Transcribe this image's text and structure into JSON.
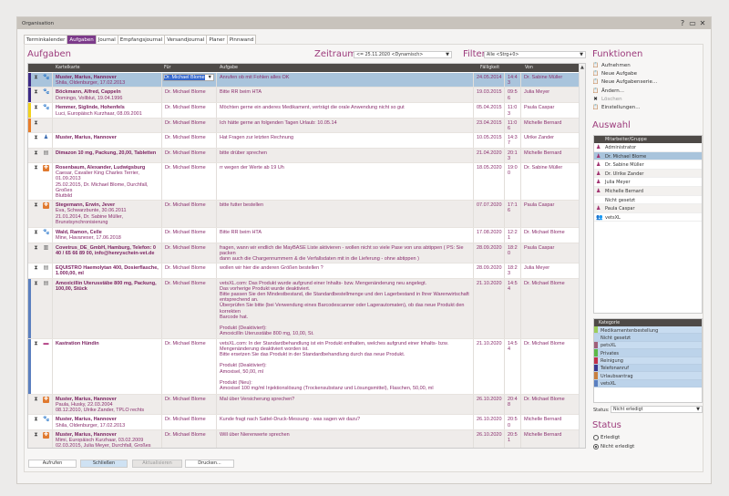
{
  "window": {
    "title": "Organisation",
    "help": "?",
    "minimize": "▭",
    "close": "✕"
  },
  "tabs": [
    {
      "label": "Terminkalender"
    },
    {
      "label": "Aufgaben",
      "active": true
    },
    {
      "label": "Journal"
    },
    {
      "label": "Empfangsjournal"
    },
    {
      "label": "Versandjournal"
    },
    {
      "label": "Planer"
    },
    {
      "label": "Pinnwand"
    }
  ],
  "main": {
    "title": "Aufgaben",
    "zeitraum_label": "Zeitraum:",
    "zeitraum_value": "<= 25.11.2020 <Dynamisch>",
    "filter_label": "Filter:",
    "filter_value": "Alle <Strg+0>"
  },
  "table": {
    "columns": {
      "kartei": "Kartelkarte",
      "fuer": "Für",
      "aufgabe": "Aufgabe",
      "faelligkeit": "Fälligkeit",
      "von": "Von"
    },
    "rows": [
      {
        "strip": "#3d2a85",
        "icon": "paw",
        "kartei": [
          "Muster, Marius, Hannover"
        ],
        "sub": [
          "Shila, Oldenburger, 17.02.2013"
        ],
        "fuer": "Dr. Michael Blome",
        "aufgabe": [
          "Anrufen ob mit Fohlen alles OK"
        ],
        "date": "24.05.2014",
        "time": "14:43",
        "von": "Dr. Sabine Müller",
        "selected": true
      },
      {
        "strip": "#3d2a85",
        "icon": "paw",
        "kartei": [
          "Böckmann, Alfred, Cappeln"
        ],
        "sub": [
          "Domingo, Vollblut, 19.04.1996"
        ],
        "fuer": "Dr. Michael Blome",
        "aufgabe": [
          "Bitte RR beim HTA"
        ],
        "date": "19.03.2015",
        "time": "09:56",
        "von": "Julia Meyer"
      },
      {
        "strip": "#f2d21c",
        "icon": "paw",
        "kartei": [
          "Hemmer, Siglinde, Hohenfels"
        ],
        "sub": [
          "Luci, Europäisch Kurzhaar, 08.09.2001"
        ],
        "fuer": "Dr. Michael Blome",
        "aufgabe": [
          "Möchten gerne ein anderes Medikament, verträgt die orale Anwendung nicht so gut"
        ],
        "date": "05.04.2015",
        "time": "11:03",
        "von": "Paula Caspar"
      },
      {
        "strip": "#e87d2a",
        "icon": "",
        "kartei": [],
        "sub": [],
        "fuer": "Dr. Michael Blome",
        "aufgabe": [
          "Ich hätte gerne an folgenden Tagen Urlaub: 10.05.14"
        ],
        "date": "23.04.2015",
        "time": "11:06",
        "von": "Michelle Bernard"
      },
      {
        "strip": "",
        "icon": "person",
        "kartei": [
          "Muster, Marius, Hannover"
        ],
        "sub": [],
        "fuer": "Dr. Michael Blome",
        "aufgabe": [
          "Hat Fragen zur letzten Rechnung"
        ],
        "date": "10.05.2015",
        "time": "14:37",
        "von": "Ulrike Zander"
      },
      {
        "strip": "",
        "icon": "product",
        "kartei": [
          "Dimazon 10 mg, Packung, 20,00, Tabletten"
        ],
        "sub": [],
        "fuer": "Dr. Michael Blome",
        "aufgabe": [
          "bitte drüber sprechen"
        ],
        "date": "21.04.2020",
        "time": "20:13",
        "von": "Michelle Bernard"
      },
      {
        "strip": "",
        "icon": "medkit",
        "kartei": [
          "Rosenbaum, Alexander, Ludwigsburg"
        ],
        "sub": [
          "Caesar, Cavalier King Charles Terrier, 01.09.2013",
          "25.02.2015, Dr. Michael Blome, Durchfall, Großes",
          "Blutbild"
        ],
        "fuer": "Dr. Michael Blome",
        "aufgabe": [
          "rr wegen der Werte ab 19 Uh"
        ],
        "date": "18.05.2020",
        "time": "19:00",
        "von": "Dr. Sabine Müller"
      },
      {
        "strip": "",
        "icon": "medkit",
        "kartei": [
          "Stegemann, Erwin, Jever"
        ],
        "sub": [
          "Eva, Schwarzbunte, 30.06.2011",
          "21.01.2014, Dr. Sabine Müller,",
          "Brunstsynchronisierung"
        ],
        "fuer": "Dr. Michael Blome",
        "aufgabe": [
          "bitte futter bestellen"
        ],
        "date": "07.07.2020",
        "time": "17:16",
        "von": "Paula Caspar"
      },
      {
        "strip": "",
        "icon": "paw",
        "kartei": [
          "Wald, Ramon, Celle"
        ],
        "sub": [
          "Mine, Havaneser, 17.06.2018"
        ],
        "fuer": "Dr. Michael Blome",
        "aufgabe": [
          "Bitte RR beim HTA"
        ],
        "date": "17.08.2020",
        "time": "12:21",
        "von": "Dr. Michael Blome"
      },
      {
        "strip": "",
        "icon": "supplier",
        "kartei": [
          "Covetrus_DE_GmbH, Hamburg, Telefon: 0",
          "40 / 65 66 89 00, info@henryschein-vet.de"
        ],
        "sub": [],
        "fuer": "Dr. Michael Blome",
        "aufgabe": [
          "fragen, wann wir endlich die MayBASE Liste aktivieren - wollen nicht so viele Pase von uns abtippen ( PS: Sie packen",
          "dann auch die Chargennummern & die Verfallsdaten mit in die Lieferung - ohne abtippen )"
        ],
        "date": "28.09.2020",
        "time": "18:20",
        "von": "Paula Caspar"
      },
      {
        "strip": "",
        "icon": "product",
        "kartei": [
          "EQUISTRO Haemolytan 400, Dosierflasche,",
          "1.000,00, ml"
        ],
        "sub": [],
        "fuer": "Dr. Michael Blome",
        "aufgabe": [
          "wollen wir hier die anderen Größen bestellen ?"
        ],
        "date": "28.09.2020",
        "time": "18:23",
        "von": "Julia Meyer"
      },
      {
        "strip": "#5b7fbf",
        "icon": "product",
        "kartei": [
          "Amoxicillin Uterusstäbe 800 mg, Packung,",
          "100,00, Stück"
        ],
        "sub": [],
        "fuer": "Dr. Michael Blome",
        "aufgabe": [
          "vetsXL.com: Das Produkt wurde aufgrund einer Inhalts- bzw. Mengenänderung neu angelegt.",
          "Das vorherige Produkt wurde deaktiviert.",
          "Bitte passen Sie den Mindestbestand, die Standardbestellmenge und den Lagerbestand in Ihrer Warenwirtschaft",
          "entsprechend an.",
          "Überprüfen Sie bitte (bei Verwendung eines Barcodescanner oder Lagerautomaten), ob das neue Produkt den korrekten",
          "Barcode hat.",
          "",
          "Produkt (Deaktiviert):",
          "Amoxicillin Uterusstäbe 800 mg, 10,00, St."
        ],
        "date": "21.10.2020",
        "time": "14:54",
        "von": "Dr. Michael Blome"
      },
      {
        "strip": "#5b7fbf",
        "icon": "case",
        "kartei": [
          "Kastration Hündin"
        ],
        "sub": [],
        "fuer": "Dr. Michael Blome",
        "aufgabe": [
          "vetsXL.com: In der Standardbehandlung ist ein Produkt enthalten, welches aufgrund einer Inhalts- bzw.",
          "Mengenänderung deaktiviert worden ist.",
          "Bitte ersetzen Sie das Produkt in der Standardbehandlung durch das neue Produkt.",
          "",
          "Produkt (Deaktiviert):",
          "Amoxisel, 50,00, ml",
          "",
          "Produkt (Neu):",
          "Amoxisel 100 mg/ml Injektionslösung (Trockensubstanz und Lösungsmittel), Flaschen, 50,00, ml"
        ],
        "date": "21.10.2020",
        "time": "14:54",
        "von": "Dr. Michael Blome"
      },
      {
        "strip": "",
        "icon": "medkit",
        "kartei": [
          "Muster, Marius, Hannover"
        ],
        "sub": [
          "Paula, Husky, 22.03.2004",
          "08.12.2010, Ulrike Zander, TPLO rechts"
        ],
        "fuer": "Dr. Michael Blome",
        "aufgabe": [
          "Mal über Versicherung sprechen?"
        ],
        "date": "26.10.2020",
        "time": "20:48",
        "von": "Dr. Michael Blome"
      },
      {
        "strip": "",
        "icon": "paw",
        "kartei": [
          "Muster, Marius, Hannover"
        ],
        "sub": [
          "Shila, Oldenburger, 17.02.2013"
        ],
        "fuer": "Dr. Michael Blome",
        "aufgabe": [
          "Kunde fragt nach Sattel-Druck-Messung - was sagen wir dazu?"
        ],
        "date": "26.10.2020",
        "time": "20:50",
        "von": "Michelle Bernard"
      },
      {
        "strip": "",
        "icon": "medkit",
        "kartei": [
          "Muster, Marius, Hannover"
        ],
        "sub": [
          "Mimi, Europäisch Kurzhaar, 03.02.2009",
          "02.03.2015, Julia Meyer, Durchfall, Großes",
          "Blutbild"
        ],
        "fuer": "Dr. Michael Blome",
        "aufgabe": [
          "Will über Nierenwerte sprechen"
        ],
        "date": "26.10.2020",
        "time": "20:51",
        "von": "Michelle Bernard"
      }
    ]
  },
  "funktionen": {
    "title": "Funktionen",
    "items": [
      {
        "label": "Aufnehmen",
        "icon": "clipboard-add-icon"
      },
      {
        "label": "Neue Aufgabe",
        "icon": "clipboard-new-icon"
      },
      {
        "label": "Neue Aufgabenserie...",
        "icon": "clipboard-series-icon"
      },
      {
        "label": "Ändern...",
        "icon": "clipboard-edit-icon"
      },
      {
        "label": "Löschen",
        "icon": "delete-icon",
        "disabled": true
      },
      {
        "label": "Einstellungen...",
        "icon": "clipboard-settings-icon"
      }
    ]
  },
  "auswahl": {
    "title": "Auswahl",
    "header": "Mitarbeiter/Gruppe",
    "items": [
      {
        "label": "Administrator",
        "icon": "user"
      },
      {
        "label": "Dr. Michael Blome",
        "icon": "user",
        "selected": true
      },
      {
        "label": "Dr. Sabine Müller",
        "icon": "user"
      },
      {
        "label": "Dr. Ulrike Zander",
        "icon": "user"
      },
      {
        "label": "Julia Meyer",
        "icon": "user"
      },
      {
        "label": "Michelle Bernard",
        "icon": "user"
      },
      {
        "label": "Nicht gesetzt",
        "icon": ""
      },
      {
        "label": "Paula Caspar",
        "icon": "user"
      },
      {
        "label": "vetsXL",
        "icon": "group"
      }
    ]
  },
  "kategorie": {
    "header": "Kategorie",
    "items": [
      {
        "label": "Medikamentenbestellung",
        "color": "#9ccc5a"
      },
      {
        "label": "Nicht gesetzt",
        "color": ""
      },
      {
        "label": "petsXL",
        "color": "#a0607a"
      },
      {
        "label": "Privates",
        "color": "#5cb848"
      },
      {
        "label": "Reinigung",
        "color": "#c0304a"
      },
      {
        "label": "Telefonanruf",
        "color": "#3a3a90"
      },
      {
        "label": "Urlaubsantrag",
        "color": "#c88040"
      },
      {
        "label": "vetsXL",
        "color": "#5a7fc0"
      }
    ],
    "status_label": "Status:",
    "status_value": "Nicht erledigt"
  },
  "status": {
    "title": "Status",
    "options": [
      {
        "label": "Erledigt",
        "checked": false
      },
      {
        "label": "Nicht erledigt",
        "checked": true
      }
    ]
  },
  "buttons": {
    "aufrufen": "Aufrufen",
    "schliessen": "Schließen",
    "aktualisieren": "Aktualisieren",
    "drucken": "Drucken..."
  },
  "colors": {
    "accent": "#9c3b7c",
    "selection": "#a9c4dc",
    "header": "#4e4a47"
  }
}
